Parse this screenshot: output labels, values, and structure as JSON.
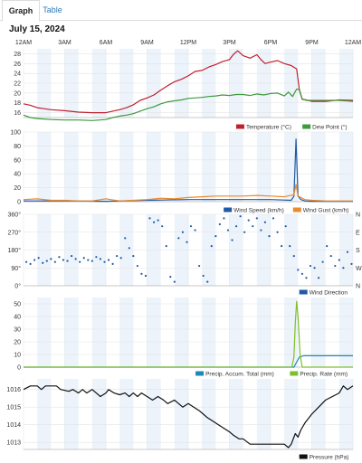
{
  "tabs": [
    {
      "label": "Graph",
      "active": true
    },
    {
      "label": "Table",
      "active": false
    }
  ],
  "date": "July 15, 2024",
  "time_labels": [
    "12AM",
    "3AM",
    "6AM",
    "9AM",
    "12PM",
    "3PM",
    "6PM",
    "9PM",
    "12AM"
  ],
  "chart_data": [
    {
      "type": "line",
      "x_unit": "hour",
      "xlim": [
        0,
        24
      ],
      "ylim": [
        15,
        29
      ],
      "yticks": [
        16,
        18,
        20,
        22,
        24,
        26,
        28
      ],
      "series": [
        {
          "name": "Temperature (°C)",
          "color": "#c0202e",
          "x": [
            0,
            0.5,
            1,
            1.5,
            2,
            3,
            4,
            5,
            5.5,
            6,
            6.5,
            7,
            7.5,
            8,
            8.5,
            9,
            9.5,
            10,
            10.5,
            11,
            11.5,
            12,
            12.5,
            13,
            13.5,
            14,
            14.5,
            15,
            15.3,
            15.6,
            16,
            16.5,
            17,
            17.3,
            17.6,
            18,
            18.5,
            19,
            19.5,
            19.9,
            20.1,
            20.3,
            20.6,
            21,
            22,
            23,
            24
          ],
          "y": [
            17.8,
            17.5,
            17.0,
            16.8,
            16.6,
            16.4,
            16.1,
            16.0,
            16.0,
            16.0,
            16.3,
            16.6,
            17.0,
            17.6,
            18.5,
            19.0,
            19.6,
            20.6,
            21.5,
            22.3,
            22.8,
            23.5,
            24.4,
            24.6,
            25.3,
            25.8,
            26.4,
            26.8,
            27.9,
            28.6,
            27.6,
            27.1,
            27.8,
            26.8,
            26.0,
            26.3,
            26.6,
            26.0,
            25.6,
            24.9,
            20.5,
            18.7,
            18.6,
            18.3,
            18.3,
            18.6,
            18.5
          ]
        },
        {
          "name": "Dew Point (°)",
          "color": "#3d9a3d",
          "x": [
            0,
            0.5,
            1,
            2,
            3,
            4,
            5,
            6,
            6.5,
            7,
            7.5,
            8,
            8.5,
            9,
            9.5,
            10,
            10.5,
            11,
            11.5,
            12,
            12.5,
            13,
            13.5,
            14,
            14.5,
            15,
            15.5,
            16,
            16.5,
            17,
            17.5,
            18,
            18.5,
            19,
            19.3,
            19.6,
            19.9,
            20.1,
            20.3,
            20.6,
            21,
            22,
            23,
            24
          ],
          "y": [
            15.5,
            15.0,
            14.8,
            14.6,
            14.5,
            14.5,
            14.4,
            14.6,
            15.0,
            15.3,
            15.5,
            15.8,
            16.3,
            16.8,
            17.2,
            17.8,
            18.2,
            18.4,
            18.6,
            18.9,
            19.0,
            19.1,
            19.3,
            19.4,
            19.6,
            19.5,
            19.7,
            19.7,
            19.5,
            19.8,
            19.6,
            19.9,
            20.0,
            19.4,
            20.2,
            19.3,
            20.8,
            20.7,
            18.8,
            18.5,
            18.5,
            18.5,
            18.5,
            18.3
          ]
        }
      ]
    },
    {
      "type": "line",
      "x_unit": "hour",
      "xlim": [
        0,
        24
      ],
      "ylim": [
        0,
        100
      ],
      "yticks": [
        0,
        20,
        40,
        60,
        80,
        100
      ],
      "series": [
        {
          "name": "Wind Speed (km/h)",
          "color": "#1f5aa6",
          "x": [
            0,
            3,
            6,
            9,
            12,
            15,
            18,
            19.5,
            19.7,
            19.85,
            20,
            20.2,
            20.5,
            21,
            24
          ],
          "y": [
            1,
            1,
            0.5,
            2,
            3,
            3,
            3,
            2,
            8,
            90,
            8,
            3,
            1,
            0.5,
            0.5
          ]
        },
        {
          "name": "Wind Gust (km/h)",
          "color": "#e98a2e",
          "x": [
            0,
            1,
            2,
            3,
            4,
            5,
            6,
            7,
            8,
            9,
            10,
            11,
            12,
            13,
            14,
            15,
            16,
            17,
            18,
            19,
            19.7,
            19.85,
            20,
            20.5,
            21,
            22,
            23,
            24
          ],
          "y": [
            3,
            4,
            2,
            2,
            1,
            1,
            4,
            1,
            2,
            3,
            5,
            4,
            6,
            7,
            8,
            8,
            8,
            9,
            8,
            7,
            10,
            25,
            8,
            3,
            2,
            1,
            1,
            1
          ]
        }
      ]
    },
    {
      "type": "scatter",
      "x_unit": "hour",
      "xlim": [
        0,
        24
      ],
      "ylim": [
        0,
        360
      ],
      "yticks": [
        0,
        90,
        180,
        270,
        360
      ],
      "ytick_labels": [
        "0°",
        "90°",
        "180°",
        "270°",
        "360°"
      ],
      "right_labels": [
        "N",
        "W",
        "S",
        "E",
        "N"
      ],
      "series": [
        {
          "name": "Wind Direction",
          "color": "#1f5aa6",
          "x": [
            0.2,
            0.5,
            0.8,
            1.1,
            1.4,
            1.7,
            2.0,
            2.3,
            2.6,
            2.9,
            3.2,
            3.5,
            3.8,
            4.1,
            4.4,
            4.7,
            5.0,
            5.3,
            5.6,
            5.9,
            6.2,
            6.5,
            6.8,
            7.1,
            7.4,
            7.7,
            8.0,
            8.3,
            8.6,
            8.9,
            9.2,
            9.5,
            9.8,
            10.1,
            10.4,
            10.7,
            11.0,
            11.3,
            11.6,
            11.9,
            12.2,
            12.5,
            12.8,
            13.1,
            13.4,
            13.7,
            14.0,
            14.3,
            14.6,
            14.9,
            15.2,
            15.5,
            15.8,
            16.1,
            16.4,
            16.7,
            17.0,
            17.3,
            17.6,
            17.9,
            18.2,
            18.5,
            18.8,
            19.1,
            19.4,
            19.7,
            20.0,
            20.3,
            20.6,
            20.9,
            21.2,
            21.5,
            21.8,
            22.1,
            22.4,
            22.7,
            23.0,
            23.3,
            23.6,
            23.9
          ],
          "y": [
            120,
            110,
            130,
            140,
            115,
            125,
            135,
            120,
            145,
            130,
            125,
            150,
            135,
            120,
            140,
            130,
            125,
            145,
            135,
            120,
            130,
            110,
            150,
            140,
            240,
            190,
            150,
            100,
            60,
            50,
            340,
            320,
            330,
            300,
            200,
            45,
            20,
            240,
            270,
            220,
            300,
            280,
            100,
            50,
            20,
            200,
            250,
            310,
            340,
            280,
            230,
            300,
            350,
            270,
            330,
            300,
            340,
            280,
            320,
            250,
            340,
            270,
            200,
            300,
            200,
            150,
            80,
            60,
            40,
            100,
            90,
            40,
            120,
            200,
            150,
            100,
            130,
            90,
            170,
            110
          ]
        }
      ]
    },
    {
      "type": "line",
      "x_unit": "hour",
      "xlim": [
        0,
        24
      ],
      "ylim": [
        0,
        55
      ],
      "yticks": [
        0,
        10,
        20,
        30,
        40,
        50
      ],
      "series": [
        {
          "name": "Precip. Accum. Total (mm)",
          "color": "#1e88b4",
          "x": [
            0,
            19.7,
            19.9,
            20.1,
            20.4,
            24
          ],
          "y": [
            0,
            0,
            4,
            8,
            9,
            9
          ]
        },
        {
          "name": "Precip. Rate (mm)",
          "color": "#7ec02a",
          "x": [
            0,
            19.55,
            19.7,
            19.8,
            19.9,
            20.0,
            20.15,
            20.3,
            24
          ],
          "y": [
            0,
            0,
            8,
            35,
            52,
            40,
            10,
            0,
            0
          ]
        }
      ]
    },
    {
      "type": "line",
      "x_unit": "hour",
      "xlim": [
        0,
        24
      ],
      "ylim": [
        1012.6,
        1016.6
      ],
      "yticks": [
        1013,
        1014,
        1015,
        1016
      ],
      "series": [
        {
          "name": "Pressure (hPa)",
          "color": "#111111",
          "x": [
            0,
            0.5,
            1,
            1.3,
            1.6,
            2.4,
            2.7,
            3.3,
            3.6,
            4.0,
            4.3,
            4.6,
            5.0,
            5.3,
            5.6,
            6.0,
            6.2,
            6.6,
            7.0,
            7.4,
            7.7,
            8.0,
            8.3,
            8.6,
            9.0,
            9.4,
            9.8,
            10.2,
            10.5,
            11.0,
            11.3,
            11.6,
            12.0,
            12.4,
            12.8,
            13.1,
            13.4,
            13.8,
            14.2,
            14.6,
            15.0,
            15.3,
            15.7,
            16.0,
            16.5,
            17.0,
            17.5,
            17.9,
            18.2,
            18.6,
            19.0,
            19.3,
            19.5,
            19.8,
            20.0,
            20.2,
            20.5,
            21.0,
            21.5,
            22.0,
            22.5,
            23.0,
            23.3,
            23.6,
            24
          ],
          "y": [
            1016.0,
            1016.2,
            1016.2,
            1016.0,
            1016.2,
            1016.2,
            1016.0,
            1015.9,
            1016.0,
            1015.8,
            1016.0,
            1015.8,
            1016.0,
            1015.8,
            1015.6,
            1015.8,
            1016.0,
            1015.8,
            1015.7,
            1015.8,
            1015.6,
            1015.8,
            1015.6,
            1015.8,
            1015.6,
            1015.4,
            1015.6,
            1015.4,
            1015.2,
            1015.4,
            1015.2,
            1015.0,
            1015.2,
            1015.0,
            1014.8,
            1014.6,
            1014.4,
            1014.2,
            1014.0,
            1013.8,
            1013.6,
            1013.4,
            1013.2,
            1013.2,
            1012.9,
            1012.9,
            1012.9,
            1012.9,
            1012.9,
            1012.9,
            1012.9,
            1012.7,
            1012.9,
            1013.5,
            1013.3,
            1013.7,
            1014.1,
            1014.6,
            1015.0,
            1015.4,
            1015.6,
            1015.8,
            1016.2,
            1016.0,
            1016.2
          ]
        }
      ]
    }
  ]
}
